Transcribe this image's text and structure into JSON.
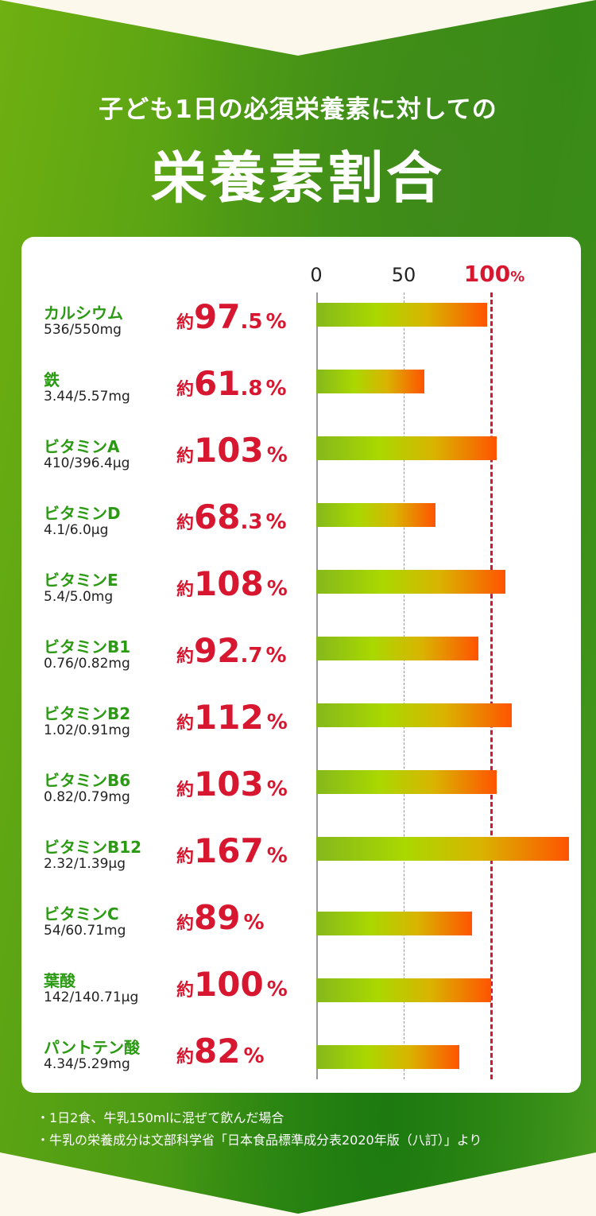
{
  "header": {
    "subtitle": "子ども1日の必須栄養素に対しての",
    "title": "栄養素割合"
  },
  "chart_data": {
    "type": "bar",
    "orientation": "horizontal",
    "title": "栄養素割合",
    "xlim": [
      0,
      145
    ],
    "ticks": [
      {
        "label": "0",
        "value": 0
      },
      {
        "label": "50",
        "value": 50
      },
      {
        "label": "100",
        "unit": "%",
        "value": 100
      }
    ],
    "reference_line": 100,
    "rows": [
      {
        "name": "カルシウム",
        "amount": "536/550mg",
        "value": 97.5,
        "prefix": "約",
        "int": "97",
        "dec": ".5",
        "unit": "%"
      },
      {
        "name": "鉄",
        "amount": "3.44/5.57mg",
        "value": 61.8,
        "prefix": "約",
        "int": "61",
        "dec": ".8",
        "unit": "%"
      },
      {
        "name": "ビタミンA",
        "amount": "410/396.4μg",
        "value": 103,
        "prefix": "約",
        "int": "103",
        "dec": "",
        "unit": "%"
      },
      {
        "name": "ビタミンD",
        "amount": "4.1/6.0μg",
        "value": 68.3,
        "prefix": "約",
        "int": "68",
        "dec": ".3",
        "unit": "%"
      },
      {
        "name": "ビタミンE",
        "amount": "5.4/5.0mg",
        "value": 108,
        "prefix": "約",
        "int": "108",
        "dec": "",
        "unit": "%"
      },
      {
        "name": "ビタミンB1",
        "amount": "0.76/0.82mg",
        "value": 92.7,
        "prefix": "約",
        "int": "92",
        "dec": ".7",
        "unit": "%"
      },
      {
        "name": "ビタミンB2",
        "amount": "1.02/0.91mg",
        "value": 112,
        "prefix": "約",
        "int": "112",
        "dec": "",
        "unit": "%"
      },
      {
        "name": "ビタミンB6",
        "amount": "0.82/0.79mg",
        "value": 103,
        "prefix": "約",
        "int": "103",
        "dec": "",
        "unit": "%"
      },
      {
        "name": "ビタミンB12",
        "amount": "2.32/1.39μg",
        "value": 167,
        "prefix": "約",
        "int": "167",
        "dec": "",
        "unit": "%"
      },
      {
        "name": "ビタミンC",
        "amount": "54/60.71mg",
        "value": 89,
        "prefix": "約",
        "int": "89",
        "dec": "",
        "unit": "%"
      },
      {
        "name": "葉酸",
        "amount": "142/140.71μg",
        "value": 100,
        "prefix": "約",
        "int": "100",
        "dec": "",
        "unit": "%"
      },
      {
        "name": "パントテン酸",
        "amount": "4.34/5.29mg",
        "value": 82,
        "prefix": "約",
        "int": "82",
        "dec": "",
        "unit": "%"
      }
    ]
  },
  "notes": [
    "・1日2食、牛乳150mlに混ぜて飲んだ場合",
    "・牛乳の栄養成分は文部科学省「日本食品標準成分表2020年版（八訂）」より"
  ]
}
